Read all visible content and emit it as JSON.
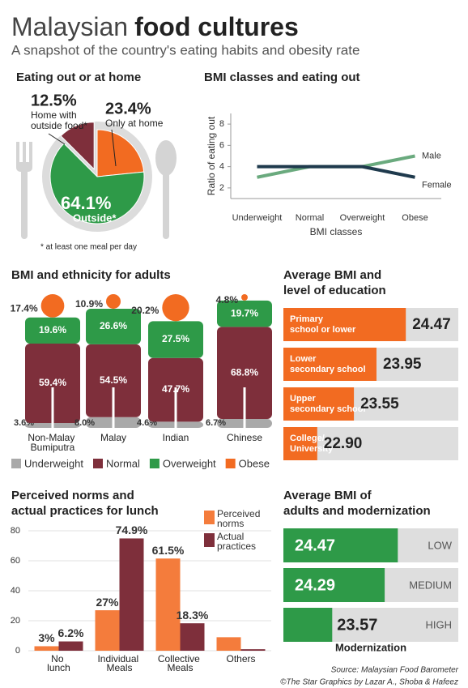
{
  "title_regular": "Malaysian",
  "title_bold": "food cultures",
  "subtitle": "A snapshot of the country's eating habits and obesity rate",
  "chart_data": [
    {
      "type": "pie",
      "title": "Eating out or at home",
      "categories": [
        "Home with outside food*",
        "Only at home",
        "Outside*"
      ],
      "values": [
        12.5,
        23.4,
        64.1
      ],
      "value_labels": [
        "12.5%",
        "23.4%",
        "64.1%"
      ],
      "colors": [
        "#7e2f3b",
        "#f26b21",
        "#2e9a48"
      ],
      "note": "* at least one meal per day"
    },
    {
      "type": "line",
      "title": "BMI classes and eating out",
      "xlabel": "BMI classes",
      "ylabel": "Ratio of eating out",
      "categories": [
        "Underweight",
        "Normal",
        "Overweight",
        "Obese"
      ],
      "series": [
        {
          "name": "Male",
          "color": "#6aaa7e",
          "values": [
            3,
            4,
            4,
            5
          ]
        },
        {
          "name": "Female",
          "color": "#1f3a4d",
          "values": [
            4,
            4,
            4,
            3
          ]
        }
      ],
      "ylim": [
        1,
        9
      ],
      "yticks": [
        2,
        4,
        6,
        8
      ]
    },
    {
      "type": "stacked-bar",
      "title": "BMI and ethnicity for adults",
      "categories": [
        "Non-Malay Bumiputra",
        "Malay",
        "Indian",
        "Chinese"
      ],
      "series": [
        {
          "name": "Underweight",
          "color": "#a9a9a9",
          "values": [
            3.6,
            8.0,
            4.6,
            6.7
          ],
          "value_labels": [
            "3.6%",
            "8.0%",
            "4.6%",
            "6.7%"
          ]
        },
        {
          "name": "Normal",
          "color": "#7e2f3b",
          "values": [
            59.4,
            54.5,
            47.7,
            68.8
          ],
          "value_labels": [
            "59.4%",
            "54.5%",
            "47.7%",
            "68.8%"
          ]
        },
        {
          "name": "Overweight",
          "color": "#2e9a48",
          "values": [
            19.6,
            26.6,
            27.5,
            19.7
          ],
          "value_labels": [
            "19.6%",
            "26.6%",
            "27.5%",
            "19.7%"
          ]
        },
        {
          "name": "Obese",
          "color": "#f26b21",
          "values": [
            17.4,
            10.9,
            20.2,
            4.8
          ],
          "value_labels": [
            "17.4%",
            "10.9%",
            "20.2%",
            "4.8%"
          ]
        }
      ],
      "ylim": [
        0,
        100
      ]
    },
    {
      "type": "hbar",
      "title": "Average BMI and level of education",
      "categories": [
        "Primary school or lower",
        "Lower secondary school",
        "Upper secondary school",
        "College/ University"
      ],
      "values": [
        24.47,
        23.95,
        23.55,
        22.9
      ],
      "value_labels": [
        "24.47",
        "23.95",
        "23.55",
        "22.90"
      ],
      "color": "#f26b21",
      "xlim": [
        22.3,
        25.4
      ]
    },
    {
      "type": "grouped-bar",
      "title": "Perceived norms and actual practices for lunch",
      "categories": [
        "No lunch",
        "Individual Meals",
        "Collective Meals",
        "Others"
      ],
      "series": [
        {
          "name": "Perceived norms",
          "color": "#f47c3c",
          "values": [
            3,
            27,
            61.5,
            9
          ],
          "value_labels": [
            "3%",
            "27%",
            "61.5%",
            null
          ]
        },
        {
          "name": "Actual practices",
          "color": "#7e2f3b",
          "values": [
            6.2,
            74.9,
            18.3,
            1
          ],
          "value_labels": [
            "6.2%",
            "74.9%",
            "18.3%",
            null
          ]
        }
      ],
      "ylim": [
        0,
        80
      ],
      "yticks": [
        0,
        20,
        40,
        60,
        80
      ]
    },
    {
      "type": "hbar",
      "title": "Average BMI of adults and modernization",
      "xlabel": "Modernization",
      "categories": [
        "LOW",
        "MEDIUM",
        "HIGH"
      ],
      "values": [
        24.47,
        24.29,
        23.57
      ],
      "color": "#2e9a48",
      "xlim": [
        22.9,
        25.3
      ]
    }
  ],
  "source": "Source: Malaysian Food Barometer",
  "credit": "©The Star Graphics by Lazar A., Shoba & Hafeez"
}
